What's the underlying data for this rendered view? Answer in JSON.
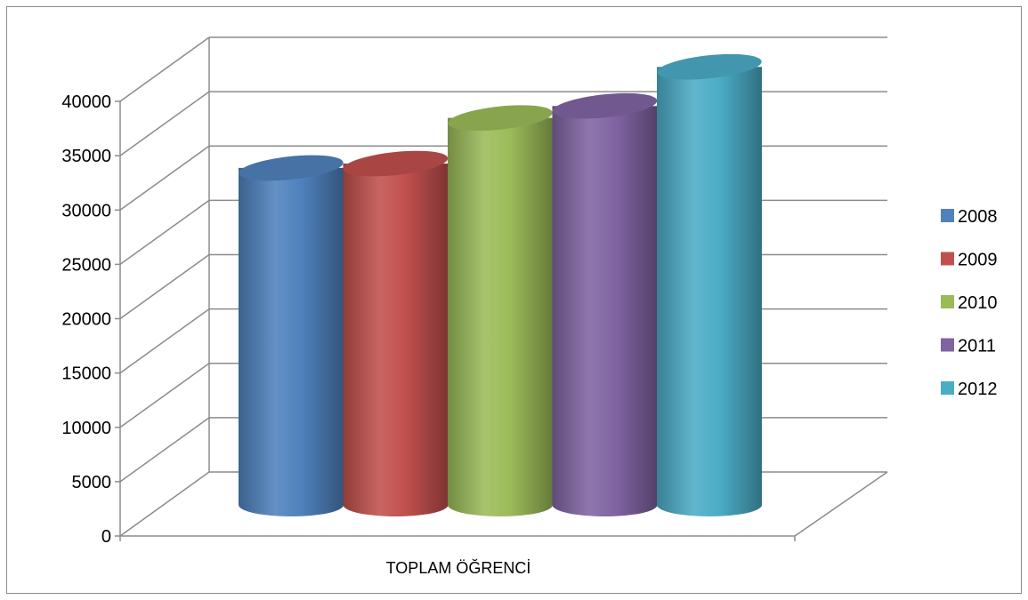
{
  "chart_data": {
    "type": "bar",
    "style": "3d-cylinder",
    "categories": [
      "TOPLAM ÖĞRENCİ"
    ],
    "series": [
      {
        "name": "2008",
        "values": [
          30600
        ],
        "color": "#4f81bd"
      },
      {
        "name": "2009",
        "values": [
          31000
        ],
        "color": "#c0504d"
      },
      {
        "name": "2010",
        "values": [
          35200
        ],
        "color": "#9bbb59"
      },
      {
        "name": "2011",
        "values": [
          36300
        ],
        "color": "#8064a2"
      },
      {
        "name": "2012",
        "values": [
          39900
        ],
        "color": "#4bacc6"
      }
    ],
    "title": "",
    "xlabel": "",
    "ylabel": "",
    "ylim": [
      0,
      40000
    ],
    "yticks": [
      "0",
      "5000",
      "10000",
      "15000",
      "20000",
      "25000",
      "30000",
      "35000",
      "40000"
    ],
    "grid": true,
    "legend": "right"
  }
}
